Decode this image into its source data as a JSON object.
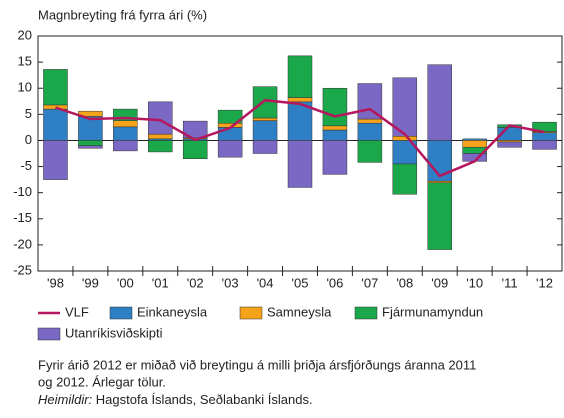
{
  "chart_data": {
    "type": "bar",
    "stacked": true,
    "title": "Magnbreyting frá fyrra ári (%)",
    "categories": [
      "'98",
      "'99",
      "'00",
      "'01",
      "'02",
      "'03",
      "'04",
      "'05",
      "'06",
      "'07",
      "'08",
      "'09",
      "'10",
      "'11",
      "'12"
    ],
    "series": [
      {
        "name": "Einkaneysla",
        "color": "#2e7fc4",
        "values": [
          6,
          4.6,
          2.6,
          0.3,
          0.3,
          2.5,
          3.8,
          7.4,
          2,
          3.3,
          -4.5,
          -7.8,
          0.3,
          2.5,
          1.5
        ]
      },
      {
        "name": "Samneysla",
        "color": "#f5a31a",
        "values": [
          0.8,
          1,
          1.2,
          0.9,
          0.2,
          0.8,
          0.5,
          0.8,
          0.8,
          0.8,
          0.8,
          -0.3,
          -1.3,
          -0.3,
          0.2
        ]
      },
      {
        "name": "Fjármunamyndun",
        "color": "#1aa84a",
        "values": [
          6.8,
          -1,
          2.2,
          -2.2,
          -3.5,
          2.5,
          6,
          8,
          7.2,
          -4.2,
          -5.8,
          -12.8,
          -1.2,
          0.5,
          1.8
        ]
      },
      {
        "name": "Utanríkisviðskipti",
        "color": "#7b68c4",
        "values": [
          -7.5,
          -0.5,
          -2,
          6.2,
          3.2,
          -3.2,
          -2.5,
          -9,
          -6.5,
          6.8,
          11.2,
          14.5,
          -1.5,
          -1,
          -1.7
        ]
      }
    ],
    "line": {
      "name": "VLF",
      "color": "#b5175f",
      "values": [
        6.3,
        4.1,
        4.3,
        3.9,
        0.1,
        2.4,
        7.7,
        7,
        4.6,
        6,
        1.2,
        -6.8,
        -4,
        2.9,
        1.6
      ]
    },
    "ylim": [
      -25,
      20
    ],
    "yticks": [
      -25,
      -20,
      -15,
      -10,
      -5,
      0,
      5,
      10,
      15,
      20
    ],
    "grid": false,
    "note": [
      "Fyrir árið 2012 er miðað við breytingu á milli þriðja ársfjórðungs áranna 2011",
      "og 2012. Árlegar tölur."
    ],
    "source_label": "Heimildir:",
    "source_text": "Hagstofa Íslands, Seðlabanki Íslands."
  }
}
